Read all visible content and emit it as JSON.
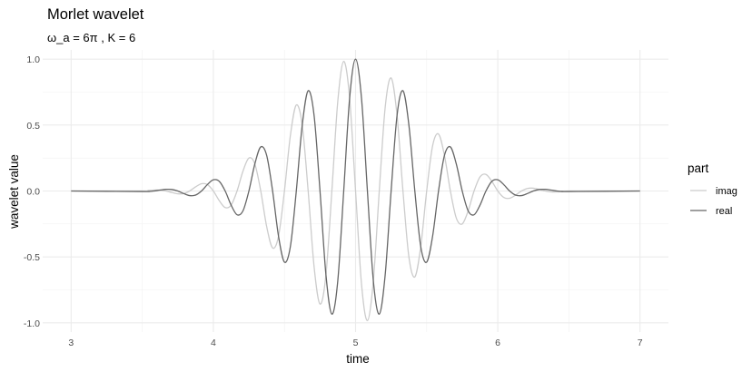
{
  "chart_data": {
    "type": "line",
    "title": "Morlet wavelet",
    "subtitle": "ω_a = 6π , K = 6",
    "xlabel": "time",
    "ylabel": "wavelet value",
    "xlim": [
      2.8,
      7.2
    ],
    "ylim": [
      -1.07,
      1.07
    ],
    "xticks": [
      3,
      4,
      5,
      6,
      7
    ],
    "xtick_labels": [
      "3",
      "4",
      "5",
      "6",
      "7"
    ],
    "yticks": [
      -1,
      -0.5,
      0,
      0.5,
      1
    ],
    "ytick_labels": [
      "-1.0",
      "-0.5",
      "0.0",
      "0.5",
      "1.0"
    ],
    "grid": true,
    "legend": {
      "title": "part",
      "placement": "right"
    },
    "x": [
      3,
      3.5,
      3.5417,
      3.5833,
      3.625,
      3.6667,
      3.7083,
      3.75,
      3.7917,
      3.8333,
      3.875,
      3.9167,
      3.9583,
      4,
      4.0417,
      4.0833,
      4.125,
      4.1667,
      4.2083,
      4.25,
      4.2917,
      4.3333,
      4.375,
      4.4167,
      4.4583,
      4.5,
      4.5417,
      4.5833,
      4.625,
      4.6667,
      4.7083,
      4.75,
      4.7917,
      4.8333,
      4.875,
      4.9167,
      4.9583,
      5,
      5.0417,
      5.0833,
      5.125,
      5.1667,
      5.2083,
      5.25,
      5.2917,
      5.3333,
      5.375,
      5.4167,
      5.4583,
      5.5,
      5.5417,
      5.5833,
      5.625,
      5.6667,
      5.7083,
      5.75,
      5.7917,
      5.8333,
      5.875,
      5.9167,
      5.9583,
      6,
      6.0417,
      6.0833,
      6.125,
      6.1667,
      6.2083,
      6.25,
      6.2917,
      6.3333,
      6.375,
      6.4167,
      6.4583,
      6.5,
      7
    ],
    "series": [
      {
        "name": "imag",
        "color": "#cccccc",
        "values": [
          0,
          0,
          0.0037,
          0.0071,
          0.0066,
          0,
          -0.0115,
          -0.0212,
          -0.0193,
          0,
          0.0311,
          0.0553,
          0.0486,
          0,
          -0.0733,
          -0.1258,
          -0.1069,
          0,
          0.1506,
          0.2496,
          0.2051,
          0,
          -0.2697,
          -0.4319,
          -0.3428,
          0,
          0.4211,
          0.6516,
          0.4998,
          0,
          -0.5732,
          -0.8571,
          -0.6353,
          0,
          0.6804,
          0.983,
          0.7041,
          0,
          -0.7041,
          -0.983,
          -0.6804,
          0,
          0.6353,
          0.8571,
          0.5732,
          0,
          -0.4998,
          -0.6516,
          -0.4211,
          0,
          0.3428,
          0.4319,
          0.2697,
          0,
          -0.2051,
          -0.2496,
          -0.1506,
          0,
          0.1069,
          0.1258,
          0.0733,
          0,
          -0.0486,
          -0.0553,
          -0.0311,
          0,
          0.0193,
          0.0212,
          0.0115,
          0,
          -0.0066,
          -0.0071,
          -0.0037,
          0,
          0
        ]
      },
      {
        "name": "real",
        "color": "#666666",
        "values": [
          0,
          -0.0039,
          -0.0037,
          0,
          0.0066,
          0.0124,
          0.0115,
          0,
          -0.0193,
          -0.0348,
          -0.0311,
          0,
          0.0486,
          0.0848,
          0.0733,
          0,
          -0.1069,
          -0.1802,
          -0.1506,
          0,
          0.2051,
          0.334,
          0.2697,
          0,
          -0.3428,
          -0.5396,
          -0.4211,
          0,
          0.4998,
          0.7602,
          0.5732,
          0,
          -0.6353,
          -0.9338,
          -0.6804,
          0,
          0.7041,
          1,
          0.7041,
          0,
          -0.6804,
          -0.9338,
          -0.6353,
          0,
          0.5732,
          0.7602,
          0.4998,
          0,
          -0.4211,
          -0.5396,
          -0.3428,
          0,
          0.2697,
          0.334,
          0.2051,
          0,
          -0.1506,
          -0.1802,
          -0.1069,
          0,
          0.0733,
          0.0848,
          0.0486,
          0,
          -0.0311,
          -0.0348,
          -0.0193,
          0,
          0.0115,
          0.0124,
          0.0066,
          0,
          -0.0037,
          -0.0039,
          0
        ]
      }
    ]
  }
}
